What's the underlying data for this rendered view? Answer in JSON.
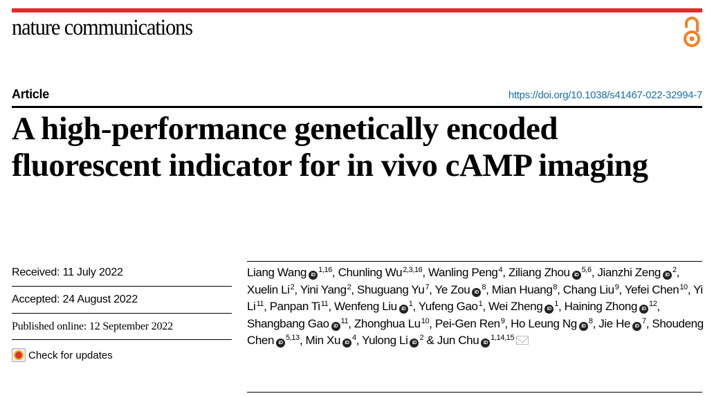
{
  "header": {
    "journal": "nature communications",
    "open_access_icon": "open-access-icon",
    "accent_color": "#e8292a",
    "oa_color": "#f58025"
  },
  "article_type": "Article",
  "doi": "https://doi.org/10.1038/s41467-022-32994-7",
  "title": "A high-performance genetically encoded fluorescent indicator for in vivo cAMP imaging",
  "dates": {
    "received": "Received: 11 July 2022",
    "accepted": "Accepted: 24 August 2022",
    "published": "Published online: 12 September 2022"
  },
  "check_updates": "Check for updates",
  "authors": [
    {
      "name": "Liang Wang",
      "orcid": true,
      "sup": "1,16"
    },
    {
      "name": "Chunling Wu",
      "orcid": false,
      "sup": "2,3,16"
    },
    {
      "name": "Wanling Peng",
      "orcid": false,
      "sup": "4"
    },
    {
      "name": "Ziliang Zhou",
      "orcid": true,
      "sup": "5,6"
    },
    {
      "name": "Jianzhi Zeng",
      "orcid": true,
      "sup": "2"
    },
    {
      "name": "Xuelin Li",
      "orcid": false,
      "sup": "2"
    },
    {
      "name": "Yini Yang",
      "orcid": false,
      "sup": "2"
    },
    {
      "name": "Shuguang Yu",
      "orcid": false,
      "sup": "7"
    },
    {
      "name": "Ye Zou",
      "orcid": true,
      "sup": "8"
    },
    {
      "name": "Mian Huang",
      "orcid": false,
      "sup": "8"
    },
    {
      "name": "Chang Liu",
      "orcid": false,
      "sup": "9"
    },
    {
      "name": "Yefei Chen",
      "orcid": false,
      "sup": "10"
    },
    {
      "name": "Yi Li",
      "orcid": false,
      "sup": "11"
    },
    {
      "name": "Panpan Ti",
      "orcid": false,
      "sup": "11"
    },
    {
      "name": "Wenfeng Liu",
      "orcid": true,
      "sup": "1"
    },
    {
      "name": "Yufeng Gao",
      "orcid": false,
      "sup": "1"
    },
    {
      "name": "Wei Zheng",
      "orcid": true,
      "sup": "1"
    },
    {
      "name": "Haining Zhong",
      "orcid": true,
      "sup": "12"
    },
    {
      "name": "Shangbang Gao",
      "orcid": true,
      "sup": "11"
    },
    {
      "name": "Zhonghua Lu",
      "orcid": false,
      "sup": "10"
    },
    {
      "name": "Pei-Gen Ren",
      "orcid": false,
      "sup": "9"
    },
    {
      "name": "Ho Leung Ng",
      "orcid": true,
      "sup": "8"
    },
    {
      "name": "Jie He",
      "orcid": true,
      "sup": "7"
    },
    {
      "name": "Shoudeng Chen",
      "orcid": true,
      "sup": "5,13"
    },
    {
      "name": "Min Xu",
      "orcid": true,
      "sup": "4"
    },
    {
      "name": "Yulong Li",
      "orcid": true,
      "sup": "2"
    },
    {
      "name": "Jun Chu",
      "orcid": true,
      "sup": "1,14,15",
      "corresponding": true
    }
  ]
}
